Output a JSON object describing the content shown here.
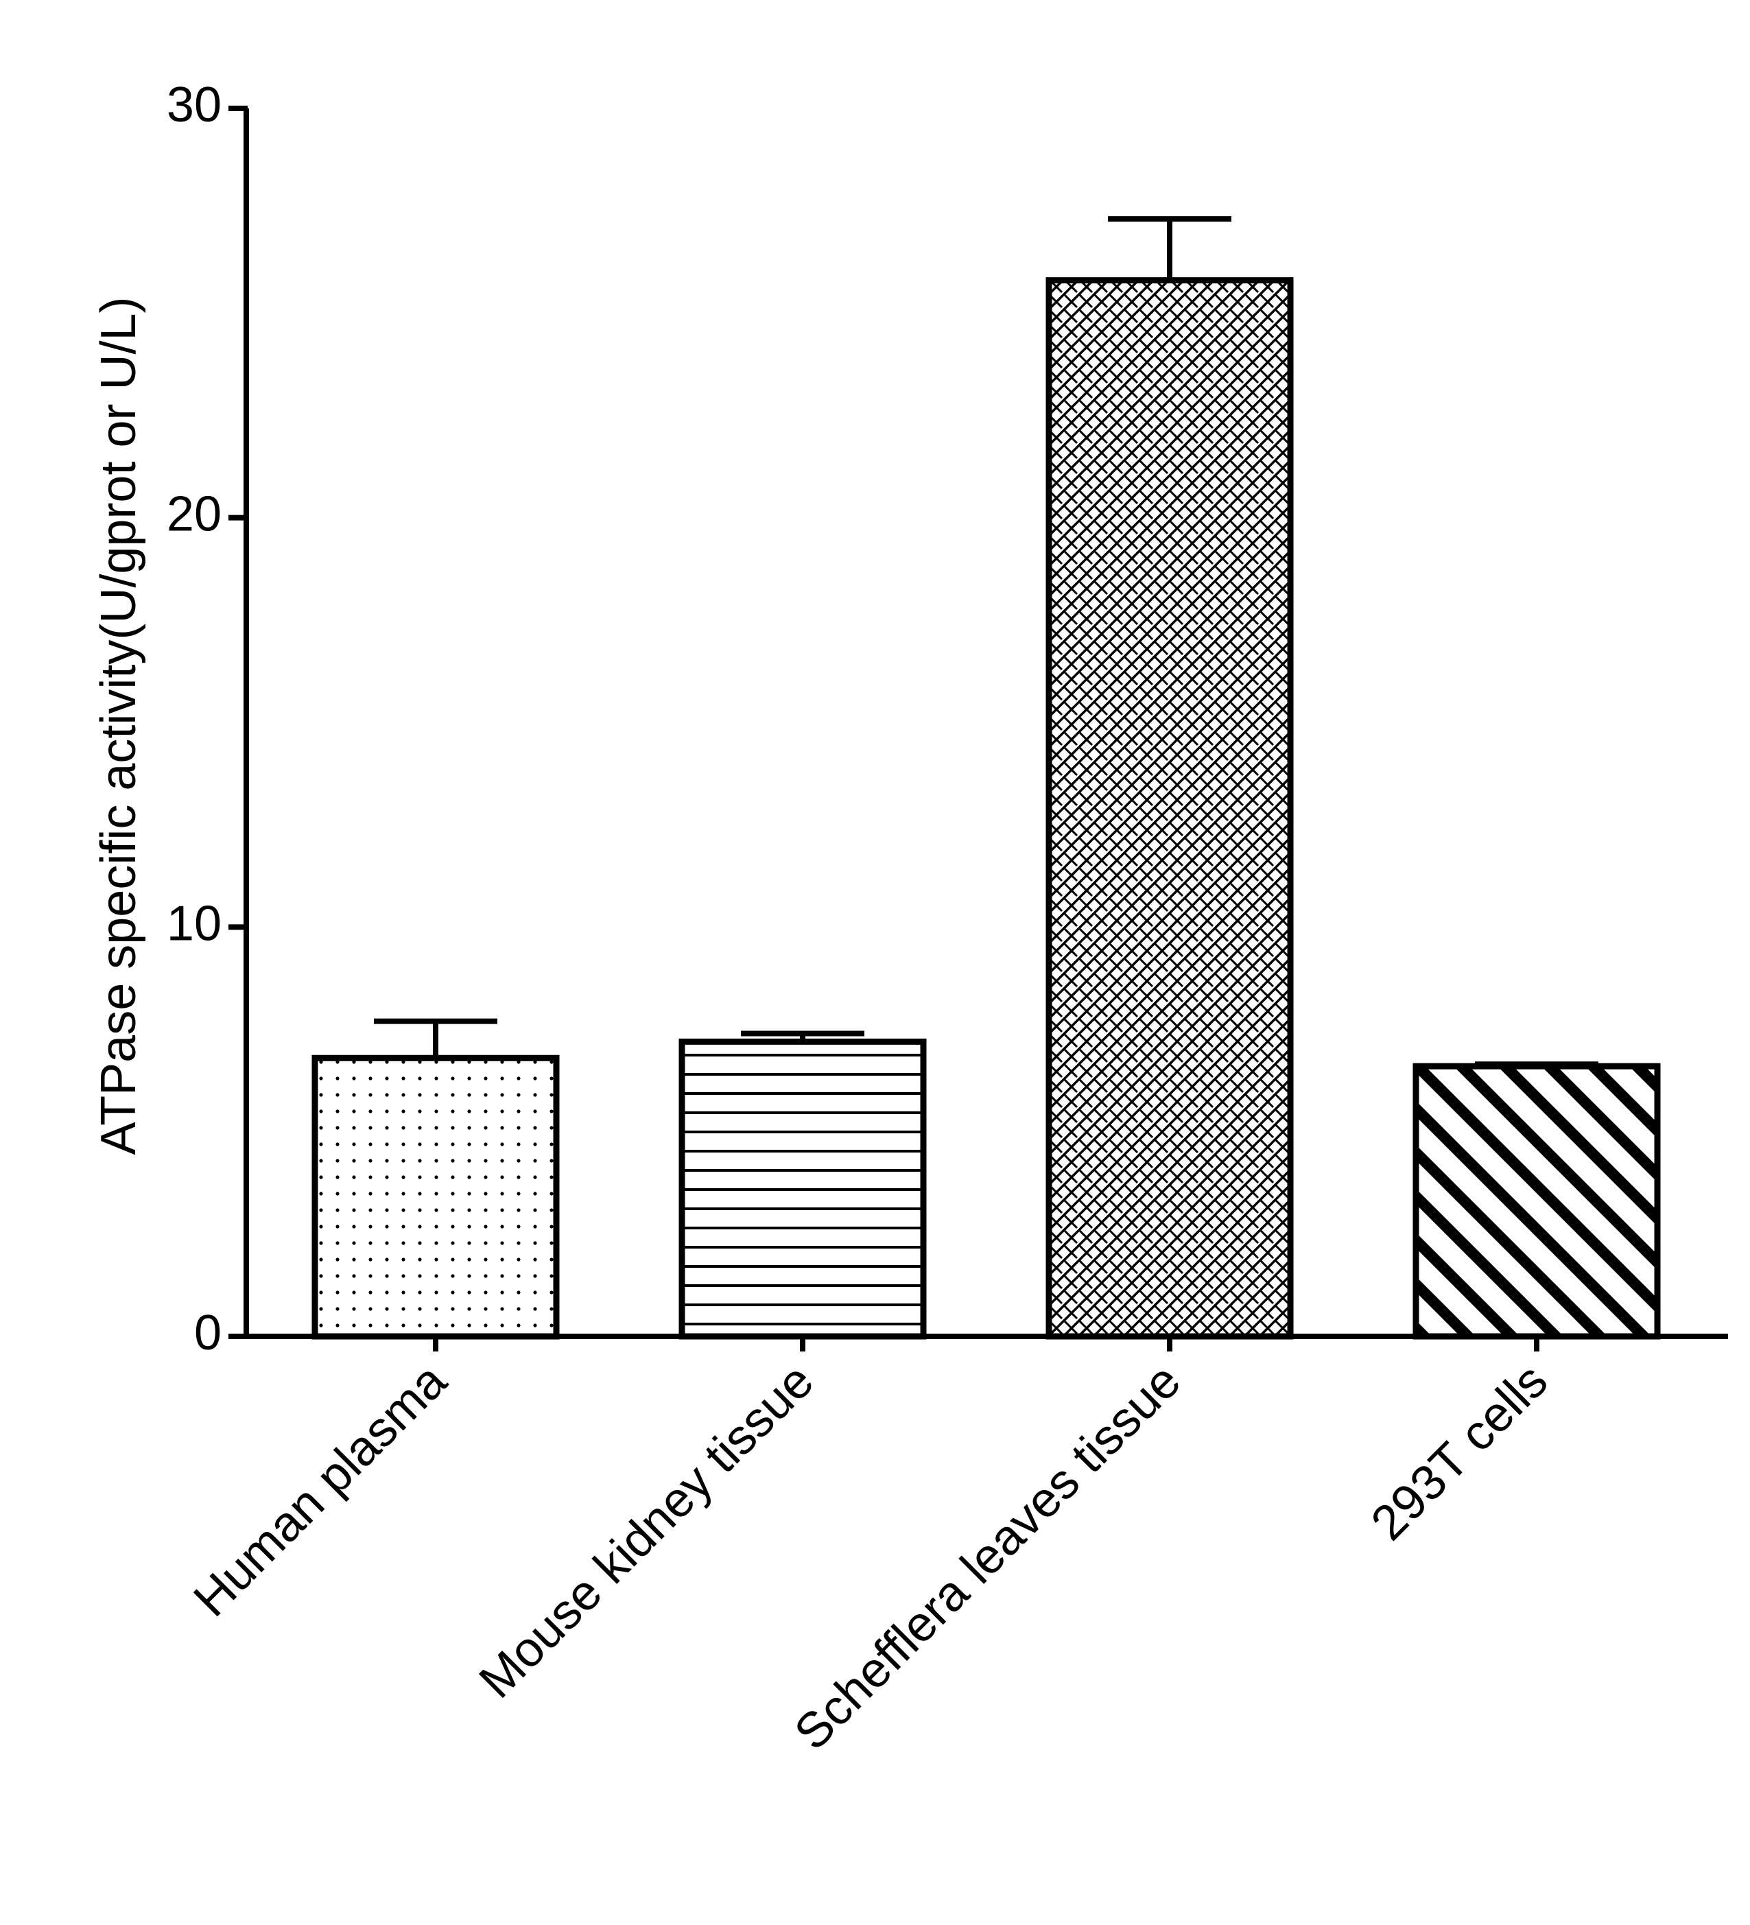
{
  "chart_data": {
    "type": "bar",
    "title": "",
    "xlabel": "",
    "ylabel": "ATPase  specific activity(U/gprot or U/L)",
    "ylim": [
      0,
      30
    ],
    "yticks": [
      0,
      10,
      20,
      30
    ],
    "grid": false,
    "categories": [
      "Human plasma",
      "Mouse kidney tissue",
      "Schefflera leaves tissue",
      "293T cells"
    ],
    "values": [
      6.8,
      7.2,
      25.8,
      6.6
    ],
    "errors": [
      0.9,
      0.2,
      1.5,
      0.05
    ],
    "patterns": [
      "dots",
      "horizontal-lines",
      "crosshatch",
      "diagonal-stripes"
    ]
  }
}
